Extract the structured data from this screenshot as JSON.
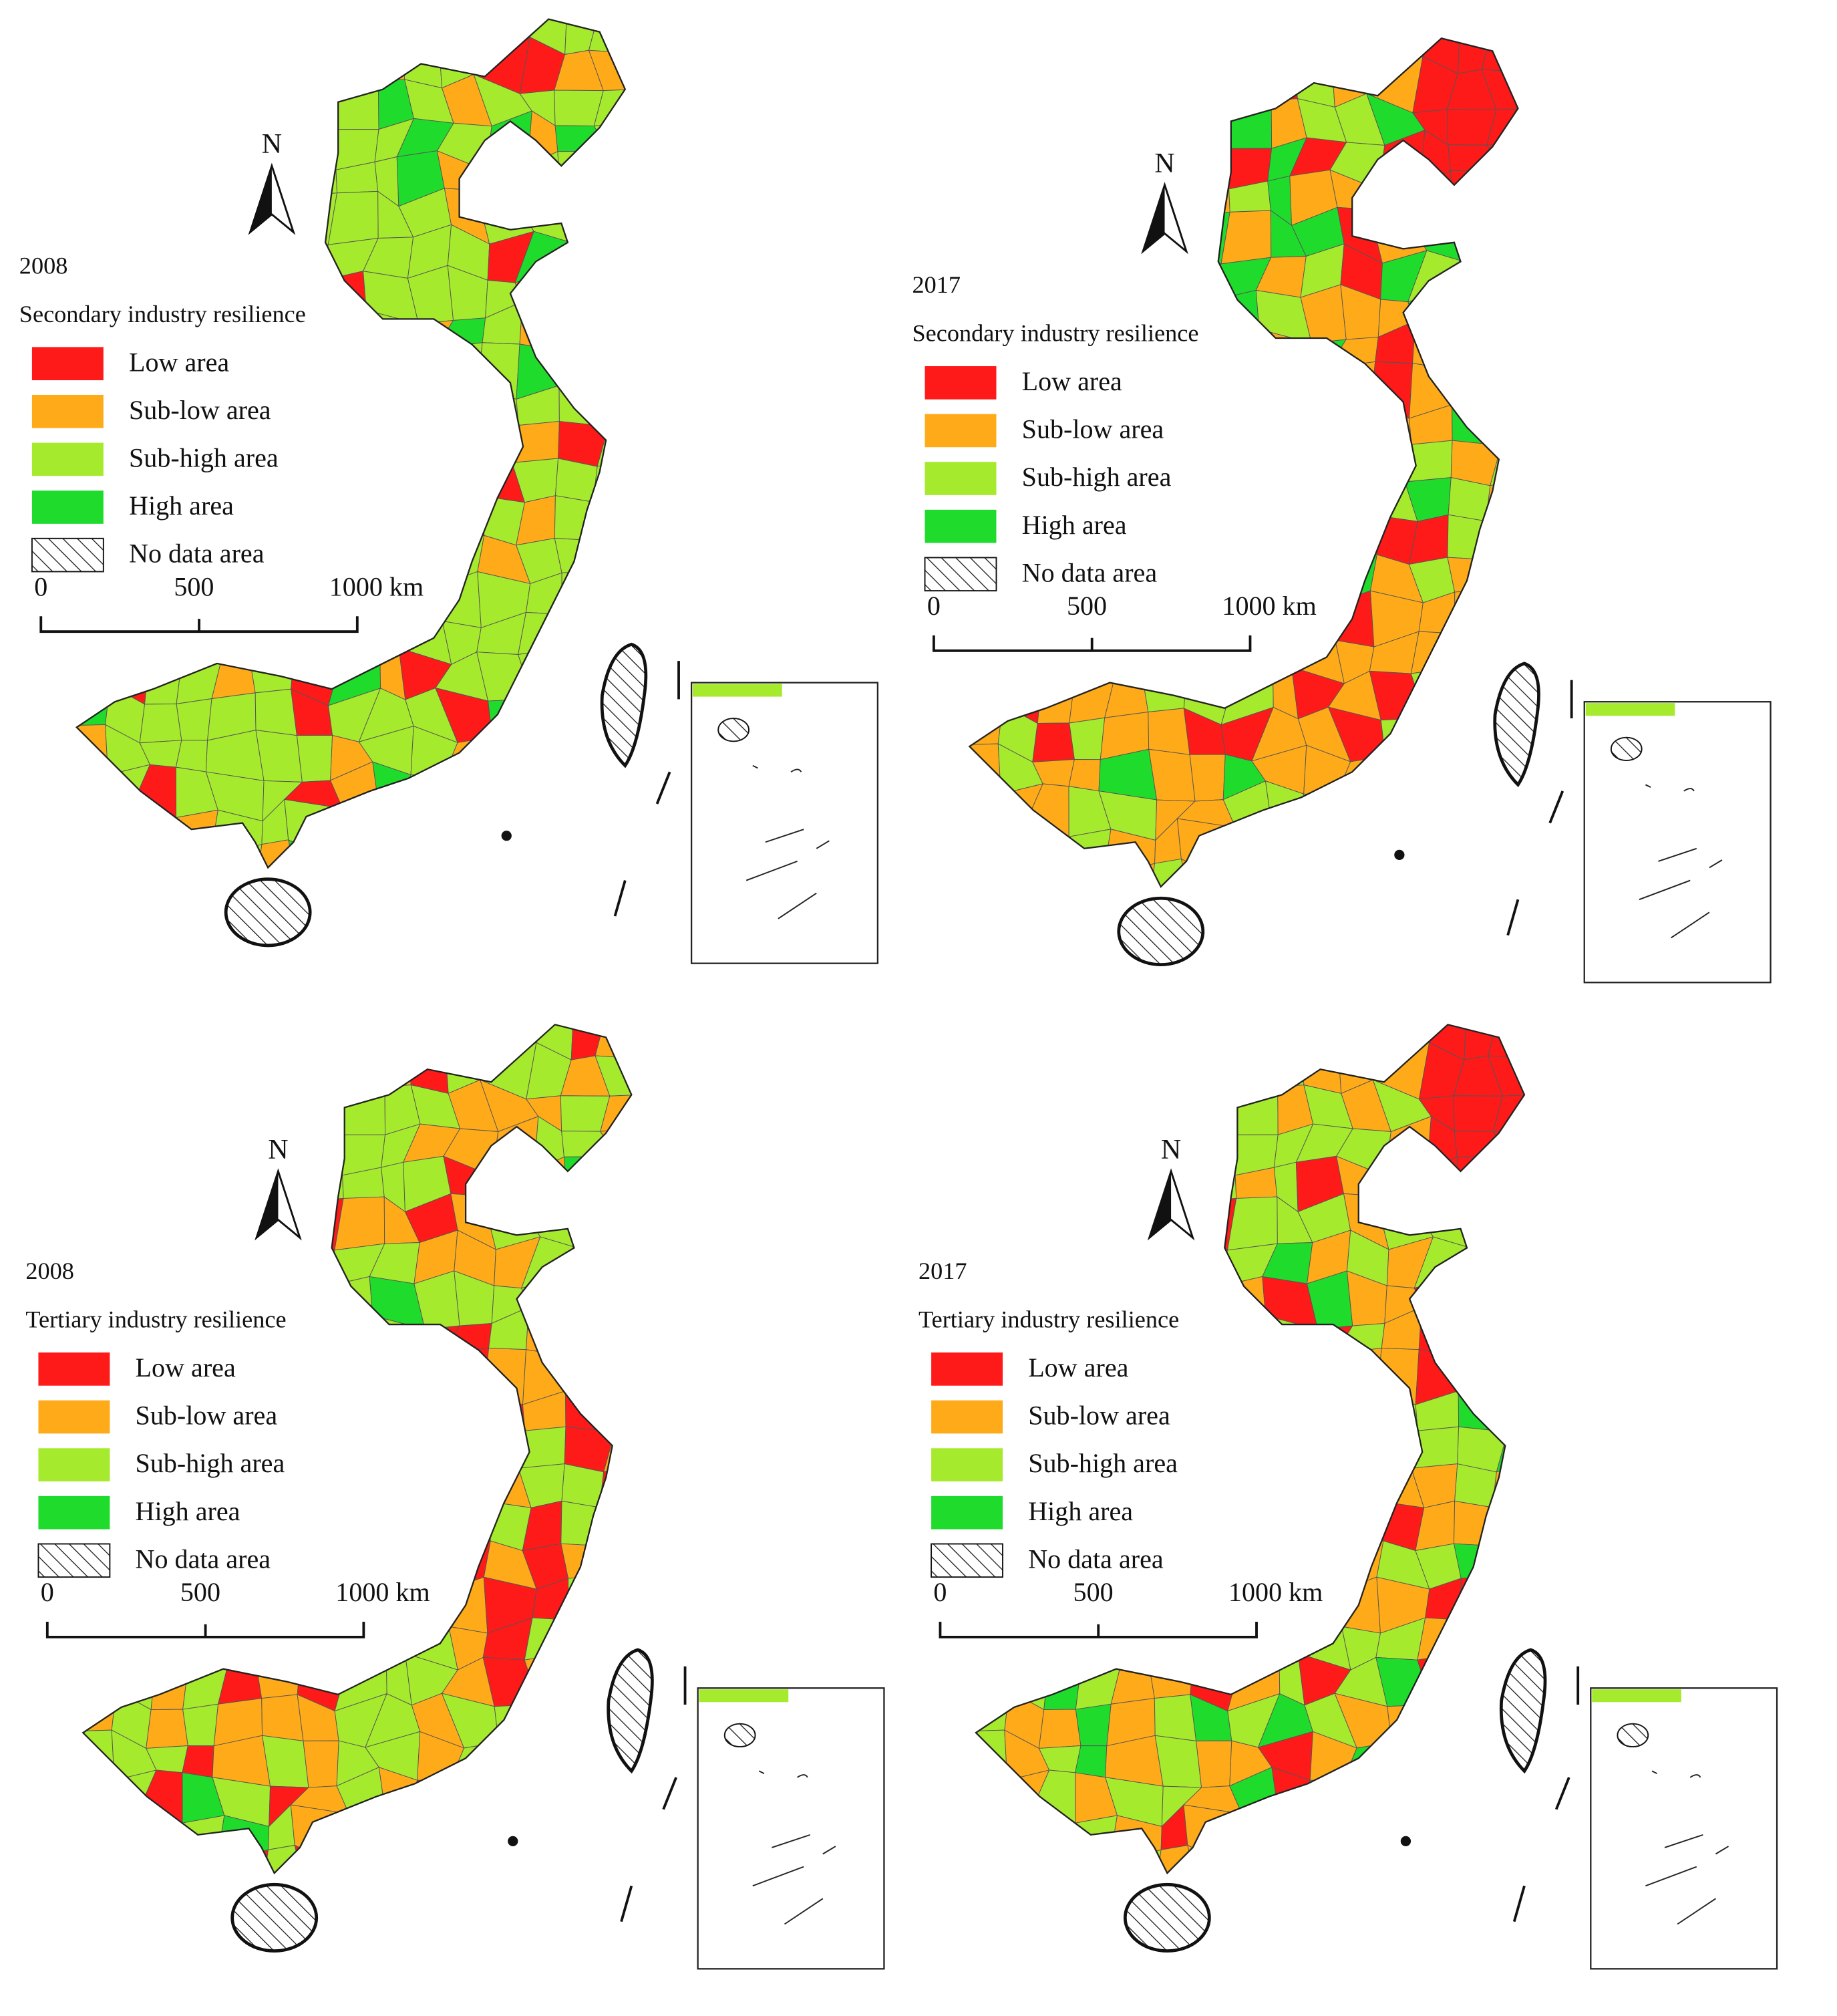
{
  "panels": [
    {
      "year": "2008",
      "title": "Secondary industry resilience",
      "north": "N",
      "legend": [
        {
          "label": "Low area",
          "color": "#ff1a1a"
        },
        {
          "label": "Sub-low area",
          "color": "#ffab19"
        },
        {
          "label": "Sub-high area",
          "color": "#a6ea2e"
        },
        {
          "label": "High area",
          "color": "#1fdc2c"
        },
        {
          "label": "No data area"
        }
      ],
      "scale": [
        "0",
        "500",
        "1000 km"
      ]
    },
    {
      "year": "2017",
      "title": "Secondary industry resilience",
      "north": "N",
      "legend": [
        {
          "label": "Low area",
          "color": "#ff1a1a"
        },
        {
          "label": "Sub-low area",
          "color": "#ffab19"
        },
        {
          "label": "Sub-high area",
          "color": "#a6ea2e"
        },
        {
          "label": "High area",
          "color": "#1fdc2c"
        },
        {
          "label": "No data area"
        }
      ],
      "scale": [
        "0",
        "500",
        "1000 km"
      ]
    },
    {
      "year": "2008",
      "title": "Tertiary industry resilience",
      "north": "N",
      "legend": [
        {
          "label": "Low area",
          "color": "#ff1a1a"
        },
        {
          "label": "Sub-low area",
          "color": "#ffab19"
        },
        {
          "label": "Sub-high area",
          "color": "#a6ea2e"
        },
        {
          "label": "High area",
          "color": "#1fdc2c"
        },
        {
          "label": "No data area"
        }
      ],
      "scale": [
        "0",
        "500",
        "1000 km"
      ]
    },
    {
      "year": "2017",
      "title": "Tertiary industry resilience",
      "north": "N",
      "legend": [
        {
          "label": "Low area",
          "color": "#ff1a1a"
        },
        {
          "label": "Sub-low area",
          "color": "#ffab19"
        },
        {
          "label": "Sub-high area",
          "color": "#a6ea2e"
        },
        {
          "label": "High area",
          "color": "#1fdc2c"
        },
        {
          "label": "No data area"
        }
      ],
      "scale": [
        "0",
        "500",
        "1000 km"
      ]
    }
  ]
}
